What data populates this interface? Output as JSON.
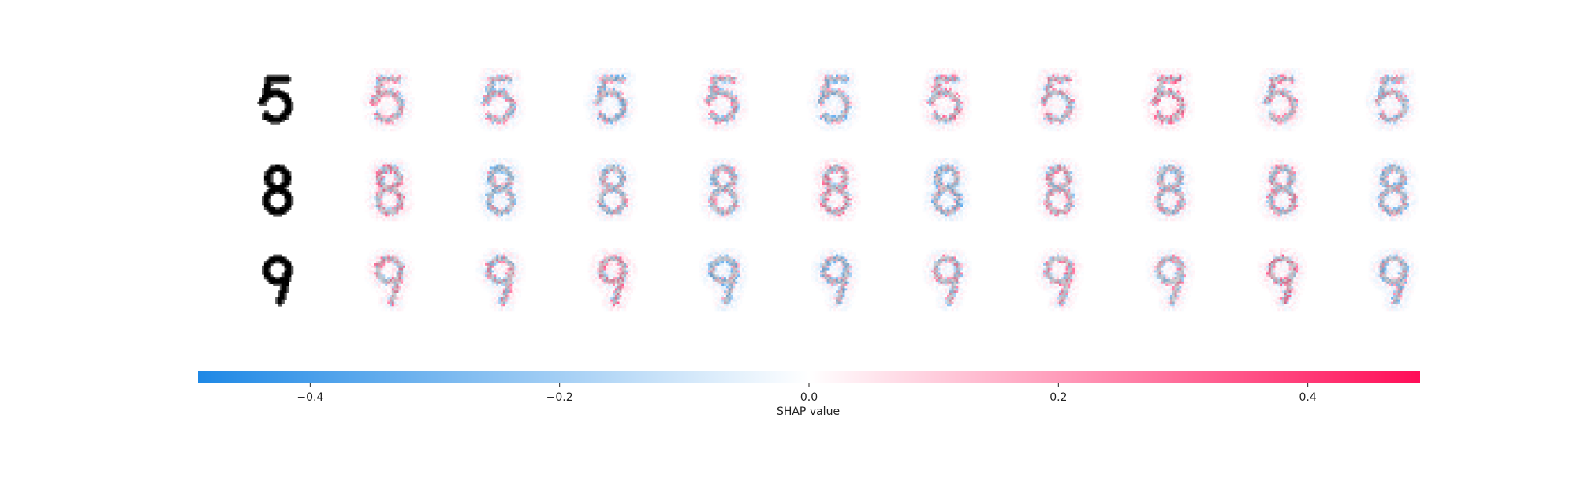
{
  "chart_data": {
    "type": "heatmap",
    "title": "",
    "description_kind": "shap-image-plot",
    "rows": [
      {
        "digit": "5",
        "explanations": 10
      },
      {
        "digit": "8",
        "explanations": 10
      },
      {
        "digit": "9",
        "explanations": 10
      }
    ],
    "colorbar": {
      "label": "SHAP value",
      "range": [
        -0.49,
        0.49
      ],
      "ticks": [
        -0.4,
        -0.2,
        0.0,
        0.2,
        0.4
      ],
      "tick_labels": [
        "−0.4",
        "−0.2",
        "0.0",
        "0.2",
        "0.4"
      ],
      "colors": {
        "negative": "#1E88E5",
        "zero": "#FFFFFF",
        "positive": "#FF0D57"
      }
    },
    "digit_ink_color": "#000000"
  }
}
